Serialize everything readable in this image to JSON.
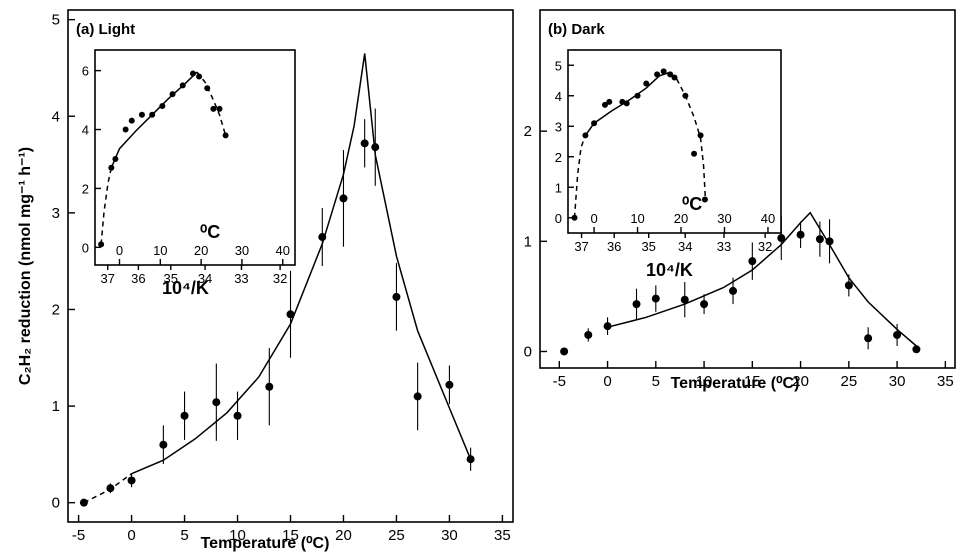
{
  "chart_data": [
    {
      "id": "light",
      "type": "scatter",
      "panel_label": "(a) Light",
      "xlabel": "Temperature (⁰C)",
      "ylabel": "C₂H₂ reduction (nmol mg⁻¹ h⁻¹)",
      "xlim": [
        -6,
        36
      ],
      "ylim": [
        -0.2,
        5.1
      ],
      "xticks": [
        -5,
        0,
        5,
        10,
        15,
        20,
        25,
        30,
        35
      ],
      "yticks": [
        0,
        1,
        2,
        3,
        4,
        5
      ],
      "points": [
        {
          "x": -4.5,
          "y": 0.0,
          "err": 0.0
        },
        {
          "x": -2.0,
          "y": 0.15,
          "err": 0.05
        },
        {
          "x": 0.0,
          "y": 0.23,
          "err": 0.07
        },
        {
          "x": 3.0,
          "y": 0.6,
          "err": 0.2
        },
        {
          "x": 5.0,
          "y": 0.9,
          "err": 0.25
        },
        {
          "x": 8.0,
          "y": 1.04,
          "err": 0.4
        },
        {
          "x": 10.0,
          "y": 0.9,
          "err": 0.25
        },
        {
          "x": 13.0,
          "y": 1.2,
          "err": 0.4
        },
        {
          "x": 15.0,
          "y": 1.95,
          "err": 0.45
        },
        {
          "x": 18.0,
          "y": 2.75,
          "err": 0.3
        },
        {
          "x": 20.0,
          "y": 3.15,
          "err": 0.5
        },
        {
          "x": 22.0,
          "y": 3.72,
          "err": 0.25
        },
        {
          "x": 23.0,
          "y": 3.68,
          "err": 0.4
        },
        {
          "x": 25.0,
          "y": 2.13,
          "err": 0.35
        },
        {
          "x": 27.0,
          "y": 1.1,
          "err": 0.35
        },
        {
          "x": 30.0,
          "y": 1.22,
          "err": 0.2
        },
        {
          "x": 32.0,
          "y": 0.45,
          "err": 0.12
        }
      ],
      "fit_dashed": [
        [
          -4.5,
          0.0
        ],
        [
          -2,
          0.14
        ],
        [
          0,
          0.3
        ]
      ],
      "fit_solid": [
        [
          0,
          0.3
        ],
        [
          3,
          0.44
        ],
        [
          6,
          0.66
        ],
        [
          9,
          0.93
        ],
        [
          12,
          1.3
        ],
        [
          15,
          1.85
        ],
        [
          18,
          2.68
        ],
        [
          20,
          3.4
        ],
        [
          21,
          3.9
        ],
        [
          22,
          4.65
        ],
        [
          23,
          3.6
        ],
        [
          25,
          2.55
        ],
        [
          27,
          1.78
        ],
        [
          30,
          0.98
        ],
        [
          32,
          0.45
        ]
      ],
      "inset": {
        "xlabel_top": "⁰C",
        "xlabel_bottom": "10⁴/K",
        "xticks_temp": [
          0,
          10,
          20,
          30,
          40
        ],
        "xticks_invK": [
          37,
          36,
          35,
          34,
          33,
          32
        ],
        "yticks": [
          0,
          2,
          4,
          6
        ],
        "points": [
          [
            -4.5,
            0.1
          ],
          [
            -2,
            2.7
          ],
          [
            -1,
            3.0
          ],
          [
            1.5,
            4.0
          ],
          [
            3,
            4.3
          ],
          [
            5.5,
            4.5
          ],
          [
            8,
            4.5
          ],
          [
            10.5,
            4.8
          ],
          [
            13,
            5.2
          ],
          [
            15.5,
            5.5
          ],
          [
            18,
            5.9
          ],
          [
            19.5,
            5.8
          ],
          [
            21.5,
            5.4
          ],
          [
            23,
            4.7
          ],
          [
            24.5,
            4.7
          ],
          [
            26,
            3.8
          ]
        ],
        "fit_dashed_start": [
          [
            -4.5,
            0.1
          ],
          [
            -3.8,
            1.2
          ],
          [
            -2.8,
            2.2
          ],
          [
            -2,
            2.7
          ]
        ],
        "fit_solid": [
          [
            -2,
            2.7
          ],
          [
            0,
            3.35
          ],
          [
            4,
            3.95
          ],
          [
            8,
            4.5
          ],
          [
            12,
            5.05
          ],
          [
            16,
            5.55
          ],
          [
            19,
            5.95
          ]
        ],
        "fit_dashed_end": [
          [
            19,
            5.95
          ],
          [
            21,
            5.6
          ],
          [
            23,
            5.0
          ],
          [
            24.5,
            4.5
          ],
          [
            26,
            3.8
          ]
        ],
        "xlim": [
          -6,
          43
        ],
        "ylim": [
          -0.6,
          6.7
        ]
      }
    },
    {
      "id": "dark",
      "type": "scatter",
      "panel_label": "(b) Dark",
      "xlabel": "Temperature (⁰C)",
      "ylabel": "",
      "xlim": [
        -7,
        36
      ],
      "ylim": [
        -0.15,
        3.1
      ],
      "xticks": [
        -5,
        0,
        5,
        10,
        15,
        20,
        25,
        30,
        35
      ],
      "yticks": [
        0,
        1,
        2
      ],
      "points": [
        {
          "x": -4.5,
          "y": 0.0,
          "err": 0.0
        },
        {
          "x": -2.0,
          "y": 0.15,
          "err": 0.06
        },
        {
          "x": 0.0,
          "y": 0.23,
          "err": 0.08
        },
        {
          "x": 3.0,
          "y": 0.43,
          "err": 0.14
        },
        {
          "x": 5.0,
          "y": 0.48,
          "err": 0.12
        },
        {
          "x": 8.0,
          "y": 0.47,
          "err": 0.16
        },
        {
          "x": 10.0,
          "y": 0.43,
          "err": 0.09
        },
        {
          "x": 13.0,
          "y": 0.55,
          "err": 0.12
        },
        {
          "x": 15.0,
          "y": 0.82,
          "err": 0.17
        },
        {
          "x": 18.0,
          "y": 1.03,
          "err": 0.2
        },
        {
          "x": 20.0,
          "y": 1.06,
          "err": 0.12
        },
        {
          "x": 22.0,
          "y": 1.02,
          "err": 0.16
        },
        {
          "x": 23.0,
          "y": 1.0,
          "err": 0.2
        },
        {
          "x": 25.0,
          "y": 0.6,
          "err": 0.1
        },
        {
          "x": 27.0,
          "y": 0.12,
          "err": 0.1
        },
        {
          "x": 30.0,
          "y": 0.15,
          "err": 0.1
        },
        {
          "x": 32.0,
          "y": 0.02,
          "err": 0.02
        }
      ],
      "fit_solid": [
        [
          0,
          0.22
        ],
        [
          4,
          0.31
        ],
        [
          8,
          0.43
        ],
        [
          12,
          0.58
        ],
        [
          15,
          0.74
        ],
        [
          18,
          0.97
        ],
        [
          20,
          1.17
        ],
        [
          21,
          1.26
        ],
        [
          23,
          0.97
        ],
        [
          25,
          0.67
        ],
        [
          27,
          0.45
        ],
        [
          30,
          0.2
        ],
        [
          32,
          0.05
        ]
      ],
      "inset": {
        "xlabel_top": "⁰C",
        "xlabel_bottom": "10⁴/K",
        "xticks_temp": [
          0,
          10,
          20,
          30,
          40
        ],
        "xticks_invK": [
          37,
          36,
          35,
          34,
          33,
          32
        ],
        "yticks": [
          0,
          1,
          2,
          3,
          4,
          5
        ],
        "points": [
          [
            -4.5,
            0.0
          ],
          [
            -2,
            2.7
          ],
          [
            0,
            3.1
          ],
          [
            2.5,
            3.7
          ],
          [
            3.5,
            3.8
          ],
          [
            6.5,
            3.8
          ],
          [
            7.5,
            3.75
          ],
          [
            10,
            4.0
          ],
          [
            12,
            4.4
          ],
          [
            14.5,
            4.7
          ],
          [
            16,
            4.8
          ],
          [
            17.5,
            4.7
          ],
          [
            18.5,
            4.6
          ],
          [
            21,
            4.0
          ],
          [
            23,
            2.1
          ],
          [
            24.5,
            2.7
          ],
          [
            25.5,
            0.6
          ]
        ],
        "fit_dashed_start": [
          [
            -4.5,
            0.0
          ],
          [
            -3.8,
            1.4
          ],
          [
            -3,
            2.3
          ],
          [
            -2,
            2.7
          ]
        ],
        "fit_solid": [
          [
            -2,
            2.7
          ],
          [
            0,
            3.1
          ],
          [
            4,
            3.5
          ],
          [
            8,
            3.85
          ],
          [
            12,
            4.25
          ],
          [
            15,
            4.65
          ],
          [
            17,
            4.75
          ],
          [
            19,
            4.55
          ]
        ],
        "fit_dashed_end": [
          [
            19,
            4.55
          ],
          [
            21,
            4.0
          ],
          [
            23,
            3.3
          ],
          [
            24.5,
            2.6
          ],
          [
            25.2,
            1.7
          ],
          [
            25.6,
            0.6
          ]
        ],
        "xlim": [
          -6,
          43
        ],
        "ylim": [
          -0.5,
          5.5
        ]
      }
    }
  ]
}
